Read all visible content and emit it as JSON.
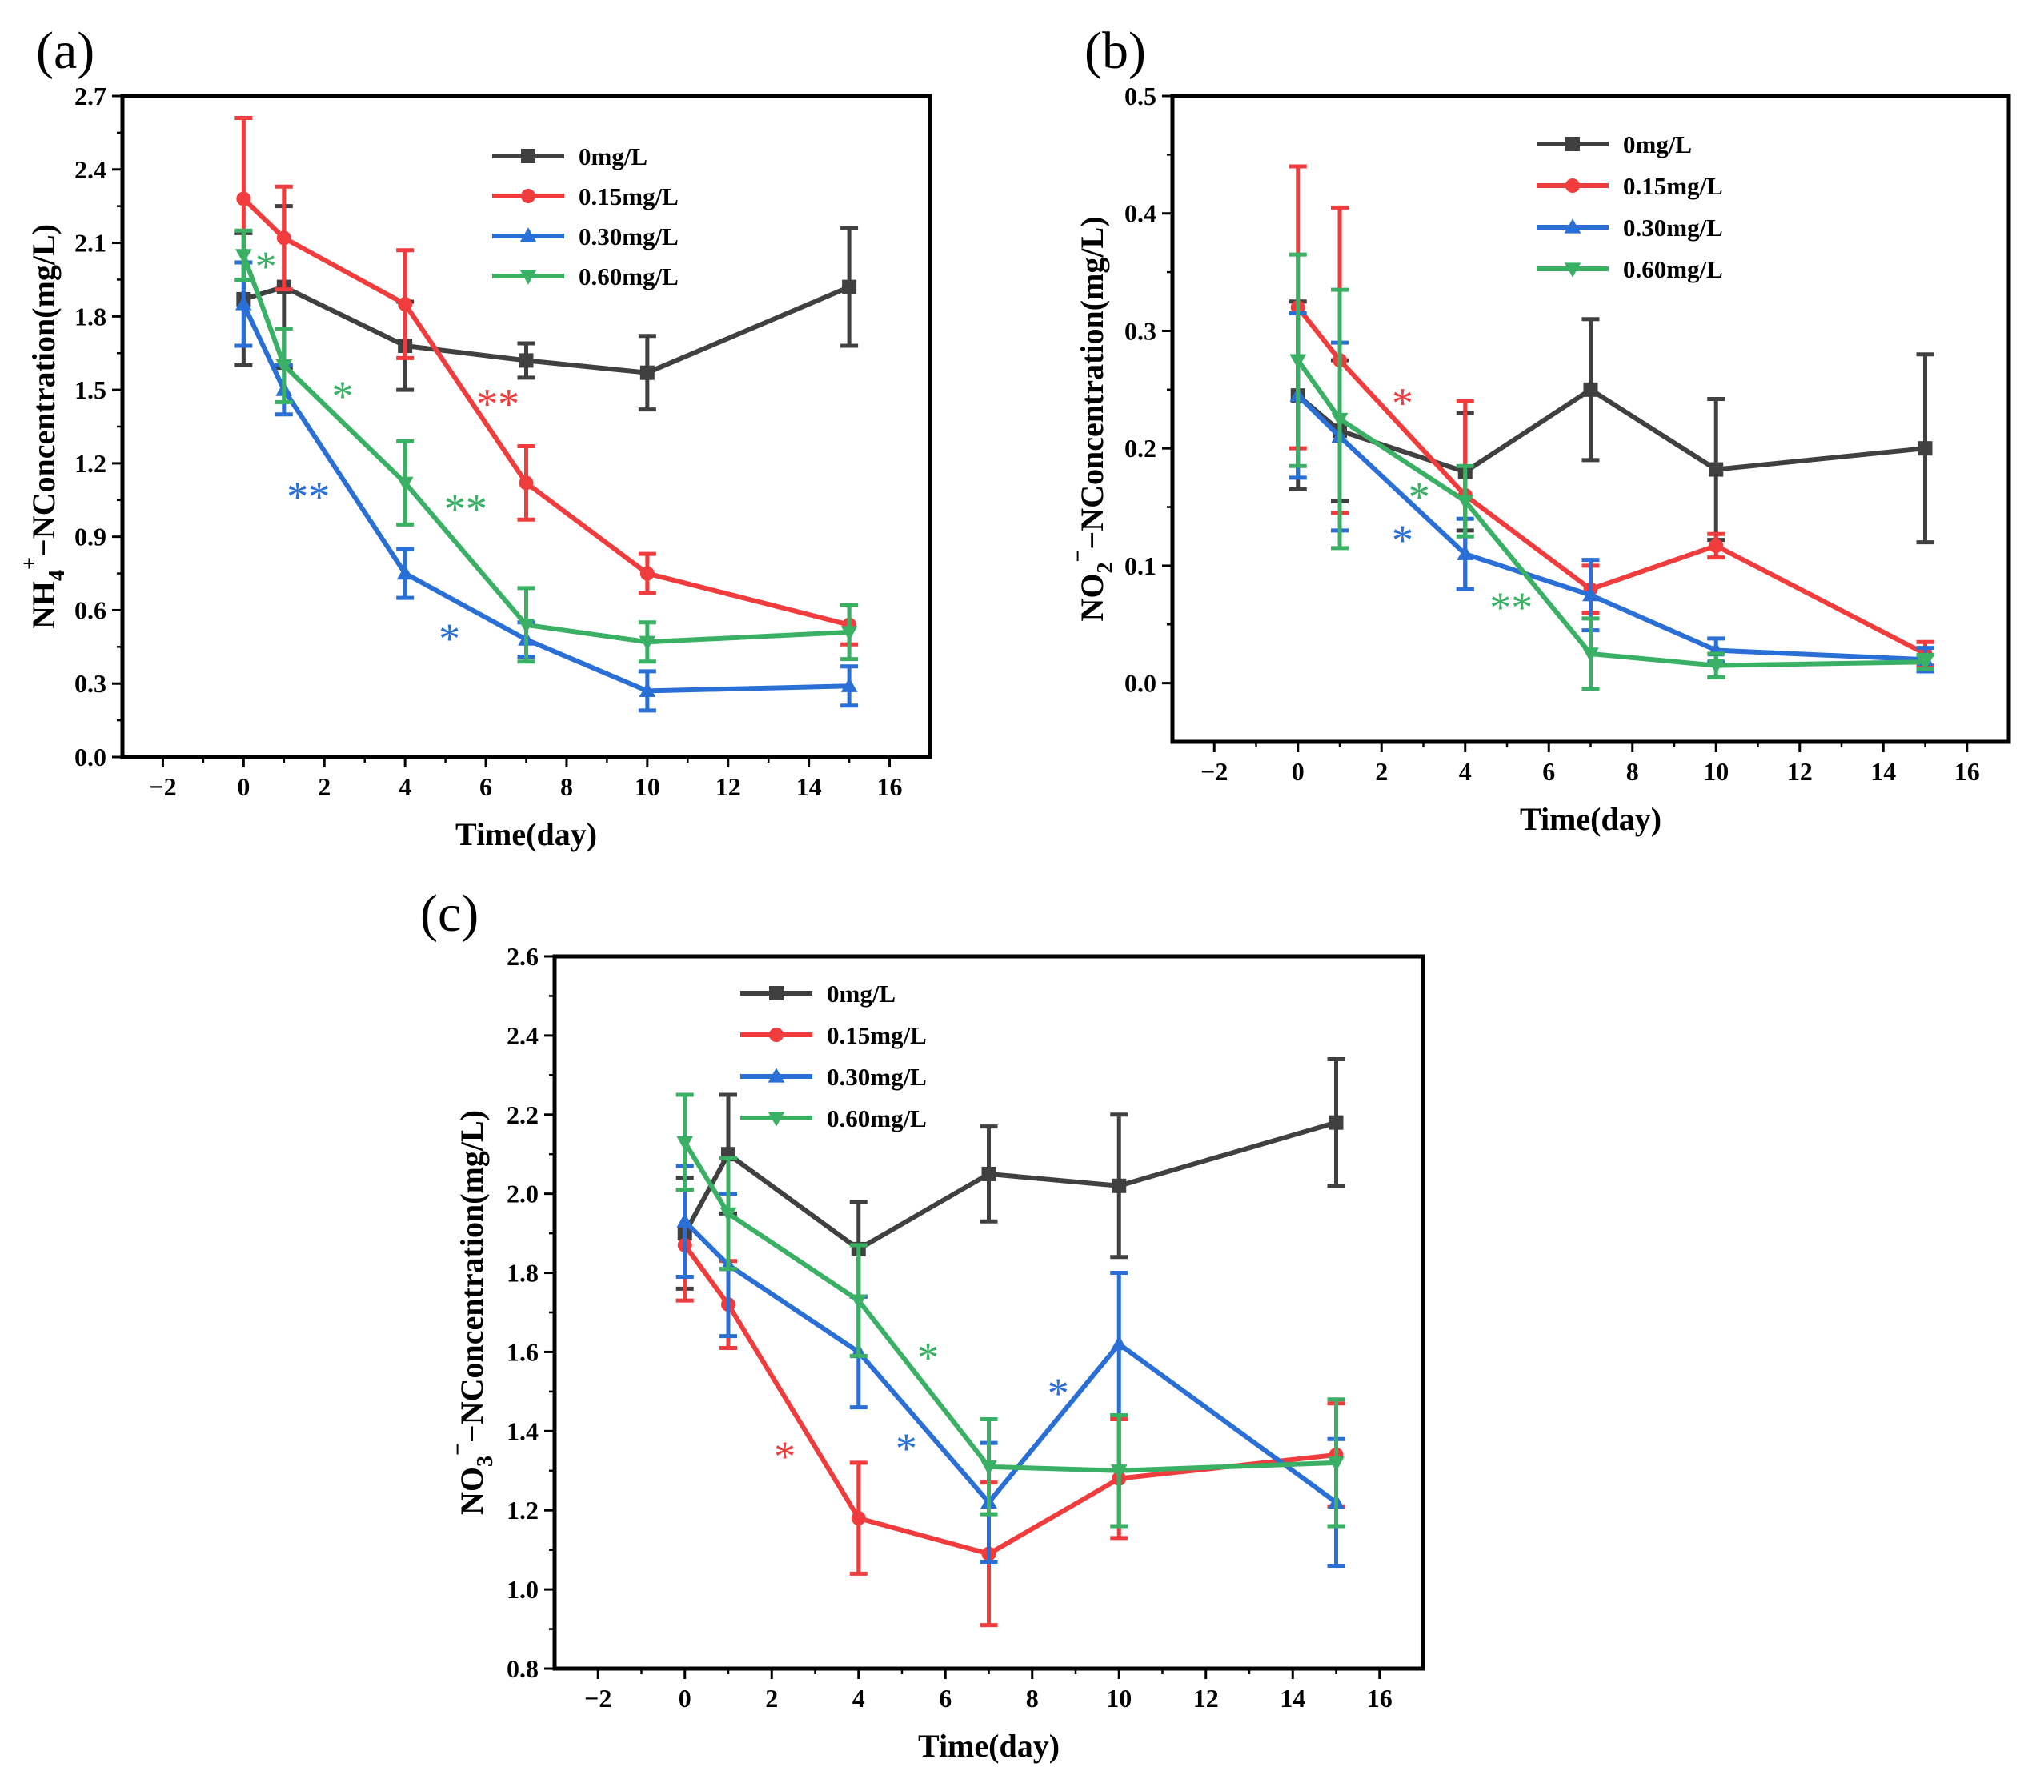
{
  "colors": {
    "s0": "#404040",
    "s015": "#f03c3c",
    "s030": "#2a6fd6",
    "s060": "#39b064"
  },
  "legend": [
    "0mg/L",
    "0.15mg/L",
    "0.30mg/L",
    "0.60mg/L"
  ],
  "chart_data": [
    {
      "id": "a",
      "type": "line",
      "panel_label": "(a)",
      "xlabel": "Time(day)",
      "ylabel_main": "NH",
      "ylabel_sub": "4",
      "ylabel_sup": "+",
      "ylabel_rest": "−NConcentration(mg/L)",
      "xlim": [
        -3,
        17
      ],
      "ylim": [
        0,
        2.7
      ],
      "xticks": [
        -2,
        0,
        2,
        4,
        6,
        8,
        10,
        12,
        14,
        16
      ],
      "yticks": [
        0.0,
        0.3,
        0.6,
        0.9,
        1.2,
        1.5,
        1.8,
        2.1,
        2.4,
        2.7
      ],
      "ytick_decimals": 1,
      "x": [
        0,
        1,
        4,
        7,
        10,
        15
      ],
      "series": [
        {
          "name": "0mg/L",
          "color_key": "s0",
          "marker": "square",
          "values": [
            1.87,
            1.92,
            1.68,
            1.62,
            1.57,
            1.92
          ],
          "errors": [
            0.27,
            0.33,
            0.18,
            0.07,
            0.15,
            0.24
          ]
        },
        {
          "name": "0.15mg/L",
          "color_key": "s015",
          "marker": "circle",
          "values": [
            2.28,
            2.12,
            1.85,
            1.12,
            0.75,
            0.54
          ],
          "errors": [
            0.33,
            0.21,
            0.22,
            0.15,
            0.08,
            0.08
          ]
        },
        {
          "name": "0.30mg/L",
          "color_key": "s030",
          "marker": "triangle-up",
          "values": [
            1.85,
            1.5,
            0.75,
            0.48,
            0.27,
            0.29
          ],
          "errors": [
            0.17,
            0.1,
            0.1,
            0.07,
            0.08,
            0.08
          ]
        },
        {
          "name": "0.60mg/L",
          "color_key": "s060",
          "marker": "triangle-down",
          "values": [
            2.05,
            1.6,
            1.12,
            0.54,
            0.47,
            0.51
          ],
          "errors": [
            0.1,
            0.15,
            0.17,
            0.15,
            0.08,
            0.11
          ]
        }
      ],
      "annotations": [
        {
          "text": "*",
          "color_key": "s060",
          "x": 0.55,
          "y": 2.01
        },
        {
          "text": "*",
          "color_key": "s060",
          "x": 2.45,
          "y": 1.48
        },
        {
          "text": "**",
          "color_key": "s030",
          "x": 1.6,
          "y": 1.07
        },
        {
          "text": "**",
          "color_key": "s060",
          "x": 5.5,
          "y": 1.02
        },
        {
          "text": "**",
          "color_key": "s015",
          "x": 6.3,
          "y": 1.45
        },
        {
          "text": "*",
          "color_key": "s030",
          "x": 5.1,
          "y": 0.49
        }
      ]
    },
    {
      "id": "b",
      "type": "line",
      "panel_label": "(b)",
      "xlabel": "Time(day)",
      "ylabel_main": "NO",
      "ylabel_sub": "2",
      "ylabel_sup": "−",
      "ylabel_rest": "−NConcentration(mg/L)",
      "xlim": [
        -3,
        17
      ],
      "ylim": [
        -0.05,
        0.5
      ],
      "xticks": [
        -2,
        0,
        2,
        4,
        6,
        8,
        10,
        12,
        14,
        16
      ],
      "yticks": [
        0.0,
        0.1,
        0.2,
        0.3,
        0.4,
        0.5
      ],
      "ytick_decimals": 1,
      "x": [
        0,
        1,
        4,
        7,
        10,
        15
      ],
      "series": [
        {
          "name": "0mg/L",
          "color_key": "s0",
          "marker": "square",
          "values": [
            0.245,
            0.215,
            0.18,
            0.25,
            0.182,
            0.2
          ],
          "errors": [
            0.08,
            0.06,
            0.05,
            0.06,
            0.06,
            0.08
          ]
        },
        {
          "name": "0.15mg/L",
          "color_key": "s015",
          "marker": "circle",
          "values": [
            0.32,
            0.275,
            0.16,
            0.08,
            0.117,
            0.025
          ],
          "errors": [
            0.12,
            0.13,
            0.08,
            0.02,
            0.01,
            0.01
          ]
        },
        {
          "name": "0.30mg/L",
          "color_key": "s030",
          "marker": "triangle-up",
          "values": [
            0.245,
            0.21,
            0.11,
            0.075,
            0.028,
            0.02
          ],
          "errors": [
            0.07,
            0.08,
            0.03,
            0.03,
            0.01,
            0.01
          ]
        },
        {
          "name": "0.60mg/L",
          "color_key": "s060",
          "marker": "triangle-down",
          "values": [
            0.275,
            0.225,
            0.155,
            0.025,
            0.015,
            0.018
          ],
          "errors": [
            0.09,
            0.11,
            0.03,
            0.03,
            0.01,
            0.006
          ]
        }
      ],
      "annotations": [
        {
          "text": "*",
          "color_key": "s015",
          "x": 2.5,
          "y": 0.24
        },
        {
          "text": "*",
          "color_key": "s060",
          "x": 2.9,
          "y": 0.16
        },
        {
          "text": "*",
          "color_key": "s030",
          "x": 2.5,
          "y": 0.123
        },
        {
          "text": "**",
          "color_key": "s060",
          "x": 5.1,
          "y": 0.066
        }
      ]
    },
    {
      "id": "c",
      "type": "line",
      "panel_label": "(c)",
      "xlabel": "Time(day)",
      "ylabel_main": "NO",
      "ylabel_sub": "3",
      "ylabel_sup": "−",
      "ylabel_rest": "−NConcentration(mg/L)",
      "xlim": [
        -3,
        17
      ],
      "ylim": [
        0.8,
        2.6
      ],
      "xticks": [
        -2,
        0,
        2,
        4,
        6,
        8,
        10,
        12,
        14,
        16
      ],
      "yticks": [
        0.8,
        1.0,
        1.2,
        1.4,
        1.6,
        1.8,
        2.0,
        2.2,
        2.4,
        2.6
      ],
      "ytick_decimals": 1,
      "x": [
        0,
        1,
        4,
        7,
        10,
        15
      ],
      "series": [
        {
          "name": "0mg/L",
          "color_key": "s0",
          "marker": "square",
          "values": [
            1.9,
            2.1,
            1.86,
            2.05,
            2.02,
            2.18
          ],
          "errors": [
            0.14,
            0.15,
            0.12,
            0.12,
            0.18,
            0.16
          ]
        },
        {
          "name": "0.15mg/L",
          "color_key": "s015",
          "marker": "circle",
          "values": [
            1.87,
            1.72,
            1.18,
            1.09,
            1.28,
            1.34
          ],
          "errors": [
            0.14,
            0.11,
            0.14,
            0.18,
            0.15,
            0.13
          ]
        },
        {
          "name": "0.30mg/L",
          "color_key": "s030",
          "marker": "triangle-up",
          "values": [
            1.93,
            1.82,
            1.6,
            1.22,
            1.62,
            1.22
          ],
          "errors": [
            0.14,
            0.18,
            0.14,
            0.15,
            0.18,
            0.16
          ]
        },
        {
          "name": "0.60mg/L",
          "color_key": "s060",
          "marker": "triangle-down",
          "values": [
            2.13,
            1.95,
            1.73,
            1.31,
            1.3,
            1.32
          ],
          "errors": [
            0.12,
            0.14,
            0.14,
            0.12,
            0.14,
            0.16
          ]
        }
      ],
      "annotations": [
        {
          "text": "*",
          "color_key": "s015",
          "x": 2.3,
          "y": 1.34
        },
        {
          "text": "*",
          "color_key": "s030",
          "x": 5.1,
          "y": 1.36
        },
        {
          "text": "*",
          "color_key": "s060",
          "x": 5.6,
          "y": 1.59
        },
        {
          "text": "*",
          "color_key": "s030",
          "x": 8.6,
          "y": 1.5
        }
      ]
    }
  ]
}
